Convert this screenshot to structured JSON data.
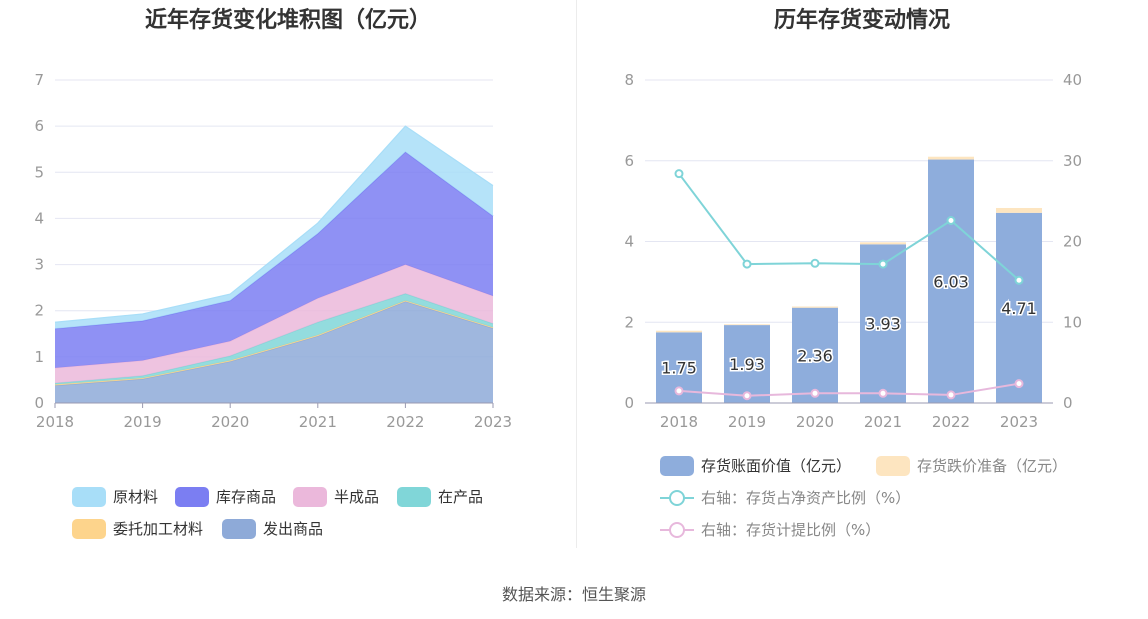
{
  "source": "数据来源：恒生聚源",
  "chart_data": [
    {
      "type": "area",
      "title": "近年存货变化堆积图（亿元）",
      "categories": [
        "2018",
        "2019",
        "2020",
        "2021",
        "2022",
        "2023"
      ],
      "ylim": [
        0,
        7
      ],
      "yticks": [
        0,
        1,
        2,
        3,
        4,
        5,
        6,
        7
      ],
      "grid": true,
      "legend_position": "bottom",
      "series": [
        {
          "name": "发出商品",
          "values": [
            0.38,
            0.52,
            0.9,
            1.45,
            2.2,
            1.62
          ],
          "color": "#8eaad8"
        },
        {
          "name": "委托加工材料",
          "values": [
            0.02,
            0.02,
            0.02,
            0.02,
            0.02,
            0.02
          ],
          "color": "#fdd48c"
        },
        {
          "name": "在产品",
          "values": [
            0.03,
            0.05,
            0.1,
            0.28,
            0.15,
            0.08
          ],
          "color": "#80d6d8"
        },
        {
          "name": "半成品",
          "values": [
            0.33,
            0.33,
            0.32,
            0.52,
            0.63,
            0.6
          ],
          "color": "#ebb8db"
        },
        {
          "name": "库存商品",
          "values": [
            0.85,
            0.86,
            0.88,
            1.4,
            2.44,
            1.73
          ],
          "color": "#7b7ef2"
        },
        {
          "name": "原材料",
          "values": [
            0.14,
            0.15,
            0.14,
            0.23,
            0.56,
            0.66
          ],
          "color": "#a8def8"
        }
      ],
      "legend_order": [
        "原材料",
        "库存商品",
        "半成品",
        "在产品",
        "委托加工材料",
        "发出商品"
      ]
    },
    {
      "type": "bar",
      "title": "历年存货变动情况",
      "categories": [
        "2018",
        "2019",
        "2020",
        "2021",
        "2022",
        "2023"
      ],
      "ylim": [
        0,
        8
      ],
      "yticks": [
        0,
        2,
        4,
        6,
        8
      ],
      "y2lim": [
        0,
        40
      ],
      "y2ticks": [
        0,
        10,
        20,
        30,
        40
      ],
      "grid": true,
      "legend_position": "bottom",
      "series": [
        {
          "name": "存货账面价值（亿元）",
          "values": [
            1.75,
            1.93,
            2.36,
            3.93,
            6.03,
            4.71
          ],
          "labels": [
            "1.75",
            "1.93",
            "2.36",
            "3.93",
            "6.03",
            "4.71"
          ],
          "color": "#8eaddc"
        },
        {
          "name": "存货跌价准备（亿元）",
          "values": [
            0.04,
            0.02,
            0.03,
            0.05,
            0.07,
            0.12
          ],
          "color": "#fde5c0"
        },
        {
          "name": "右轴：存货占净资产比例（%）",
          "axis": "right",
          "type": "line",
          "values": [
            28.4,
            17.2,
            17.3,
            17.2,
            22.6,
            15.2
          ],
          "color": "#7fd4d8"
        },
        {
          "name": "右轴：存货计提比例（%）",
          "axis": "right",
          "type": "line",
          "values": [
            1.5,
            0.9,
            1.2,
            1.2,
            1.0,
            2.4
          ],
          "color": "#e7b8dc"
        }
      ]
    }
  ]
}
